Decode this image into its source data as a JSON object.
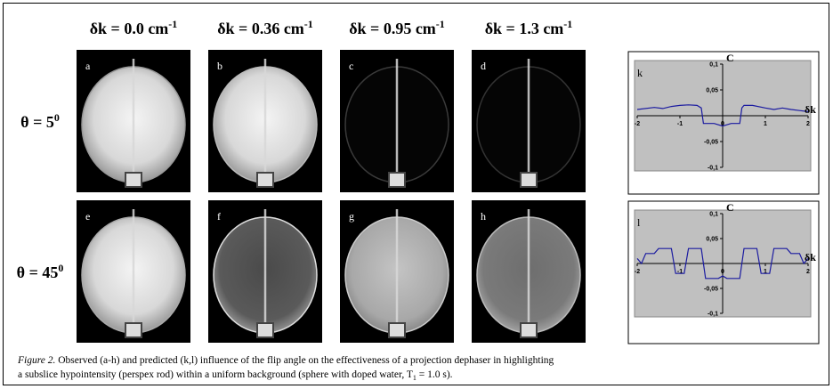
{
  "columns": [
    {
      "text": "δk = 0.0 cm",
      "sup": "-1"
    },
    {
      "text": "δk = 0.36 cm",
      "sup": "-1"
    },
    {
      "text": "δk = 0.95 cm",
      "sup": "-1"
    },
    {
      "text": "δk = 1.3 cm",
      "sup": "-1"
    }
  ],
  "rows": [
    {
      "label": {
        "text": "θ = 5",
        "sup": "0"
      },
      "panels": [
        "a",
        "b",
        "c",
        "d"
      ]
    },
    {
      "label": {
        "text": "θ = 45",
        "sup": "0"
      },
      "panels": [
        "e",
        "f",
        "g",
        "h"
      ]
    }
  ],
  "plots": [
    {
      "type": "line",
      "panel": "k",
      "x_label": "δk",
      "y_label": "C",
      "color": "#1a1aa0",
      "x": [
        -2,
        -1.6,
        -1.4,
        -1.2,
        -1,
        -0.8,
        -0.6,
        -0.5,
        -0.45,
        -0.2,
        0,
        0.2,
        0.4,
        0.45,
        0.5,
        0.7,
        1,
        1.2,
        1.4,
        1.6,
        1.8,
        2
      ],
      "values": [
        0.012,
        0.016,
        0.014,
        0.018,
        0.02,
        0.021,
        0.02,
        0.015,
        -0.015,
        -0.015,
        -0.02,
        -0.015,
        -0.015,
        0.015,
        0.02,
        0.02,
        0.015,
        0.012,
        0.015,
        0.012,
        0.01,
        0.008
      ],
      "xlim": [
        -2,
        2
      ],
      "ylim": [
        -0.1,
        0.1
      ],
      "xticks": [
        -2,
        -1,
        0,
        1,
        2
      ],
      "yticks": [
        {
          "value": 0.1,
          "label": "0,1"
        },
        {
          "value": 0.05,
          "label": "0,05"
        },
        {
          "value": -0.05,
          "label": "-0,05"
        },
        {
          "value": -0.1,
          "label": "-0,1"
        }
      ]
    },
    {
      "type": "line",
      "panel": "l",
      "x_label": "δk",
      "y_label": "C",
      "color": "#1a1aa0",
      "x": [
        -2,
        -1.9,
        -1.8,
        -1.6,
        -1.5,
        -1.2,
        -1.1,
        -0.9,
        -0.8,
        -0.5,
        -0.4,
        -0.1,
        0,
        0.1,
        0.4,
        0.5,
        0.8,
        0.9,
        1.1,
        1.2,
        1.5,
        1.6,
        1.8,
        1.9,
        2
      ],
      "values": [
        0.01,
        0,
        0.02,
        0.02,
        0.03,
        0.03,
        -0.02,
        -0.02,
        0.03,
        0.03,
        -0.03,
        -0.03,
        -0.025,
        -0.03,
        -0.03,
        0.03,
        0.03,
        -0.02,
        -0.02,
        0.03,
        0.03,
        0.02,
        0.02,
        0,
        0.01
      ],
      "xlim": [
        -2,
        2
      ],
      "ylim": [
        -0.1,
        0.1
      ],
      "xticks": [
        -2,
        -1,
        0,
        1,
        2
      ],
      "yticks": [
        {
          "value": 0.1,
          "label": "0,1"
        },
        {
          "value": 0.05,
          "label": "0,05"
        },
        {
          "value": -0.05,
          "label": "-0,05"
        },
        {
          "value": -0.1,
          "label": "-0,1"
        }
      ]
    }
  ],
  "caption": {
    "label": "Figure 2.",
    "text": " Observed (a-h) and predicted (k,l) influence of the flip angle on the effectiveness of a projection dephaser in highlighting",
    "text2": "a subslice hypointensity (perspex rod) within a uniform background (sphere with doped water, T",
    "sub": "1",
    "end": " = 1.0 s)."
  }
}
